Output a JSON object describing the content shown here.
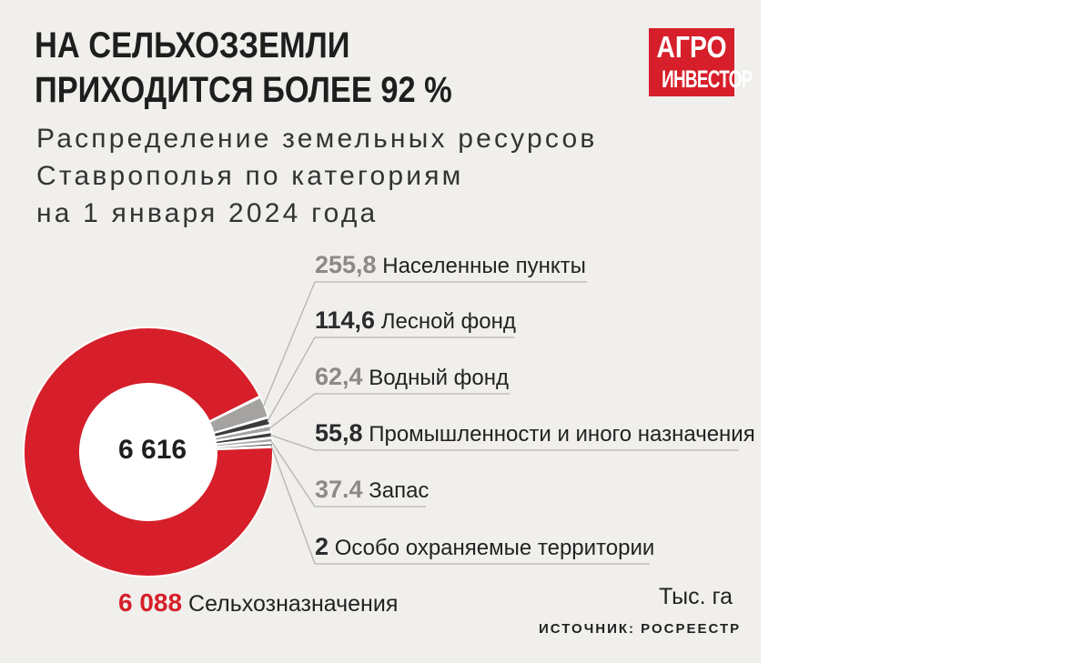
{
  "header": {
    "title_line1": "НА СЕЛЬХОЗЗЕМЛИ",
    "title_line2": "ПРИХОДИТСЯ БОЛЕЕ 92 %",
    "subtitle_line1": "Распределение земельных ресурсов",
    "subtitle_line2": "Ставрополья по категориям",
    "subtitle_line3": "на 1 января 2024 года"
  },
  "logo": {
    "line1": "АГРО",
    "line2": "ИНВЕСТОР"
  },
  "chart_data": {
    "type": "pie",
    "donut": true,
    "center_label": "6 616",
    "unit": "Тыс. га",
    "source": "ИСТОЧНИК: РОСРЕЕСТР",
    "slices": [
      {
        "label": "Сельхозназначения",
        "value_text": "6 088",
        "value": 6088,
        "color": "#d61f2a",
        "value_color": "#d61f2a"
      },
      {
        "label": "Населенные пункты",
        "value_text": "255,8",
        "value": 255.8,
        "color": "#a5a3a1",
        "value_color": "#8c8a88"
      },
      {
        "label": "Лесной фонд",
        "value_text": "114,6",
        "value": 114.6,
        "color": "#3b3b3d",
        "value_color": "#2b2b2d"
      },
      {
        "label": "Водный фонд",
        "value_text": "62,4",
        "value": 62.4,
        "color": "#a5a3a1",
        "value_color": "#8c8a88"
      },
      {
        "label": "Промышленности и иного назначения",
        "value_text": "55,8",
        "value": 55.8,
        "color": "#3b3b3d",
        "value_color": "#2b2b2d"
      },
      {
        "label": "Запас",
        "value_text": "37.4",
        "value": 37.4,
        "color": "#a5a3a1",
        "value_color": "#8c8a88"
      },
      {
        "label": "Особо охраняемые территории",
        "value_text": "2",
        "value": 2,
        "color": "#3b3b3d",
        "value_color": "#2b2b2d"
      }
    ]
  }
}
